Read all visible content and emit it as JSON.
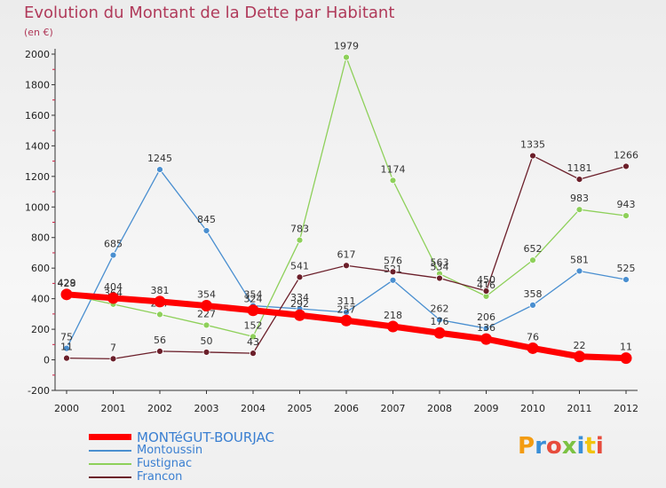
{
  "title": "Evolution du Montant de la Dette par Habitant",
  "subtitle": "(en €)",
  "logo": {
    "text": "Proxiti",
    "colors": [
      "#f39c12",
      "#3a8fd8",
      "#e74c3c",
      "#7cc243",
      "#3a8fd8",
      "#f1c40f",
      "#e74c3c"
    ]
  },
  "chart_data": {
    "type": "line",
    "x": [
      "2000",
      "2001",
      "2002",
      "2003",
      "2004",
      "2005",
      "2006",
      "2007",
      "2008",
      "2009",
      "2010",
      "2011",
      "2012"
    ],
    "ylim": [
      -200,
      2000
    ],
    "yticks": [
      -200,
      0,
      200,
      400,
      600,
      800,
      1000,
      1200,
      1400,
      1600,
      1800,
      2000
    ],
    "grid": false,
    "legend_position": "bottom-left",
    "series": [
      {
        "name": "Montoussin",
        "color": "#4a8fd0",
        "values": [
          75,
          685,
          1245,
          845,
          354,
          334,
          311,
          521,
          262,
          206,
          358,
          581,
          525
        ]
      },
      {
        "name": "Fustignac",
        "color": "#8ed05a",
        "values": [
          429,
          364,
          297,
          227,
          152,
          783,
          1979,
          1174,
          563,
          416,
          652,
          983,
          943
        ]
      },
      {
        "name": "Francon",
        "color": "#6b1f2a",
        "values": [
          11,
          7,
          56,
          50,
          43,
          541,
          617,
          576,
          534,
          450,
          1335,
          1181,
          1266
        ]
      },
      {
        "name": "MONTéGUT-BOURJAC",
        "color": "#ff0000",
        "values": [
          428,
          404,
          381,
          354,
          324,
          292,
          257,
          218,
          176,
          136,
          76,
          22,
          11
        ]
      }
    ],
    "legend_order": [
      "MONTéGUT-BOURJAC",
      "Montoussin",
      "Fustignac",
      "Francon"
    ]
  }
}
